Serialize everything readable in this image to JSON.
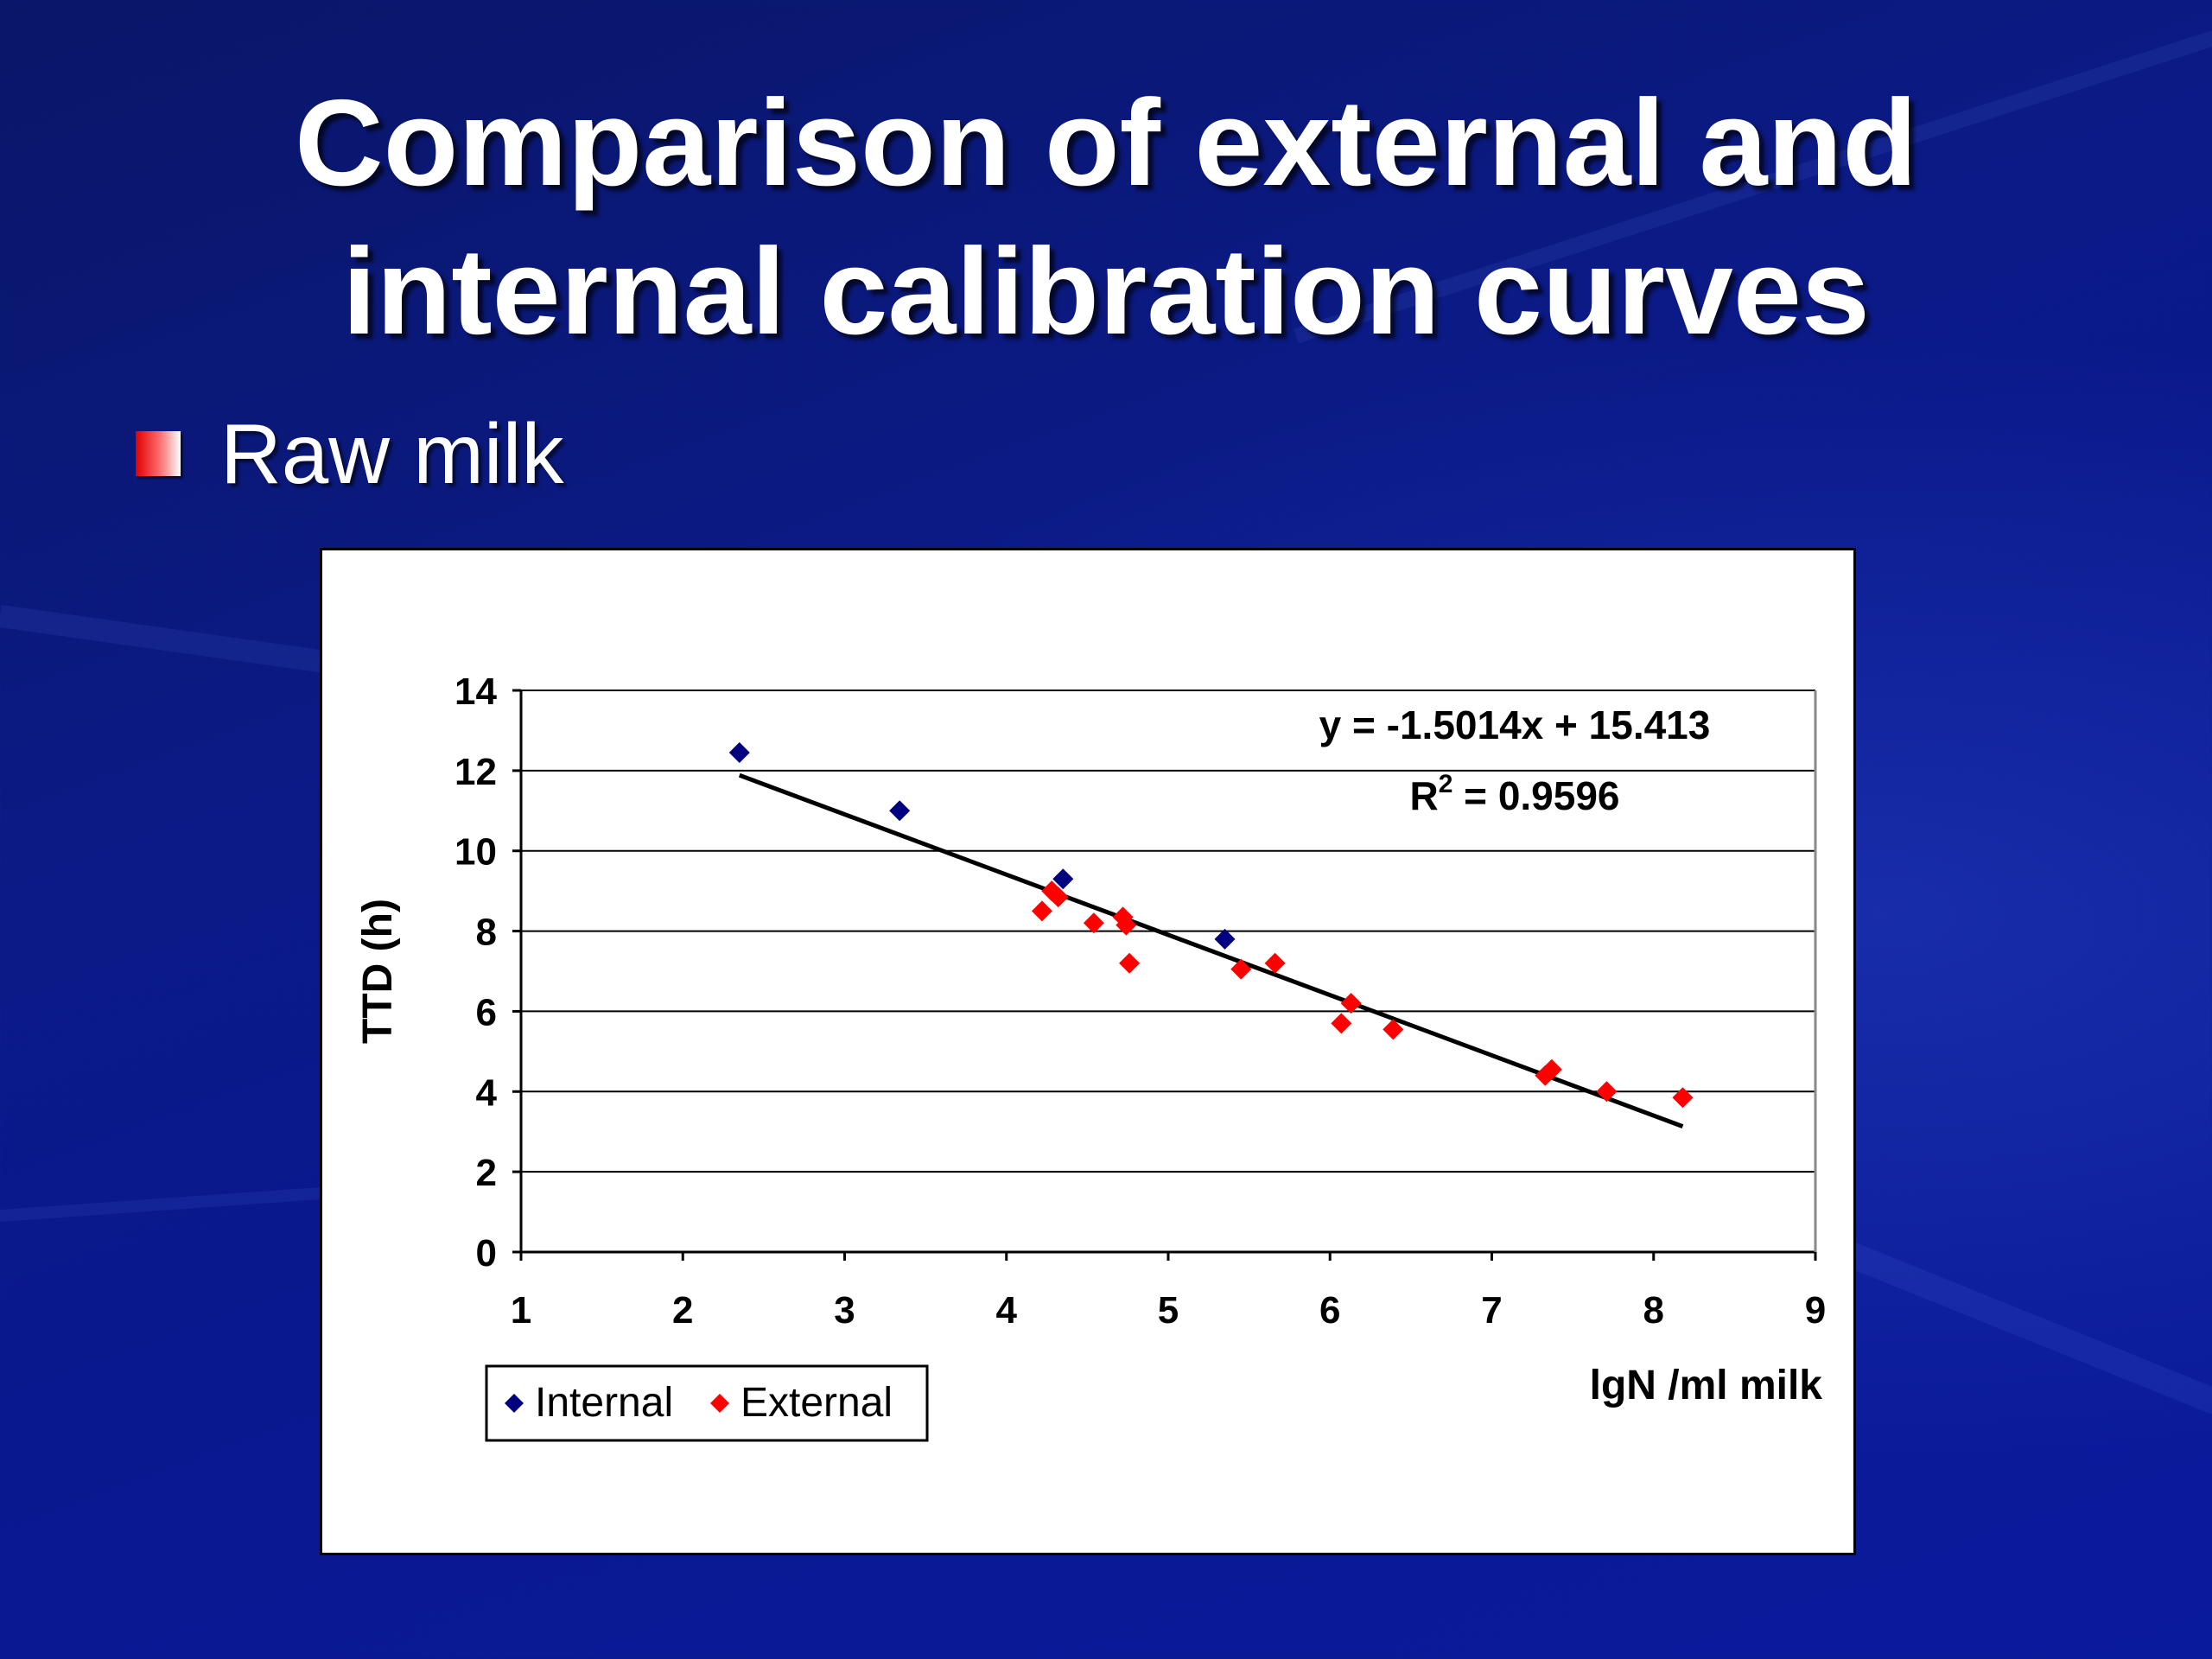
{
  "slide": {
    "title_line1": "Comparison of external and",
    "title_line2": "internal calibration curves",
    "bullet": "Raw milk"
  },
  "chart_data": {
    "type": "scatter",
    "title": "",
    "xlabel": "lgN /ml milk",
    "ylabel": "TTD (h)",
    "xlim": [
      1,
      9
    ],
    "ylim": [
      0,
      14
    ],
    "x_ticks": [
      1,
      2,
      3,
      4,
      5,
      6,
      7,
      8,
      9
    ],
    "y_ticks": [
      0,
      2,
      4,
      6,
      8,
      10,
      12,
      14
    ],
    "grid": "horizontal",
    "legend": "bottom-left",
    "series": [
      {
        "name": "Internal",
        "color": "#000080",
        "marker": "diamond",
        "points": [
          [
            2.35,
            12.45
          ],
          [
            3.34,
            11.0
          ],
          [
            4.35,
            9.3
          ],
          [
            5.35,
            7.8
          ]
        ]
      },
      {
        "name": "External",
        "color": "#ff0000",
        "marker": "diamond",
        "points": [
          [
            4.22,
            8.5
          ],
          [
            4.28,
            9.0
          ],
          [
            4.32,
            8.85
          ],
          [
            4.54,
            8.2
          ],
          [
            4.72,
            8.35
          ],
          [
            4.74,
            8.15
          ],
          [
            4.76,
            7.2
          ],
          [
            5.45,
            7.05
          ],
          [
            5.66,
            7.2
          ],
          [
            6.07,
            5.7
          ],
          [
            6.13,
            6.2
          ],
          [
            6.39,
            5.55
          ],
          [
            7.33,
            4.4
          ],
          [
            7.37,
            4.55
          ],
          [
            7.71,
            4.0
          ],
          [
            8.18,
            3.85
          ]
        ]
      }
    ],
    "trendline": {
      "x_start": 2.35,
      "x_end": 8.18,
      "slope": -1.5014,
      "intercept": 15.413,
      "color": "#000000"
    },
    "annotations": {
      "equation": "y = -1.5014x + 15.413",
      "r2_prefix": "R",
      "r2_superscript": "2",
      "r2_value": " = 0.9596"
    }
  }
}
